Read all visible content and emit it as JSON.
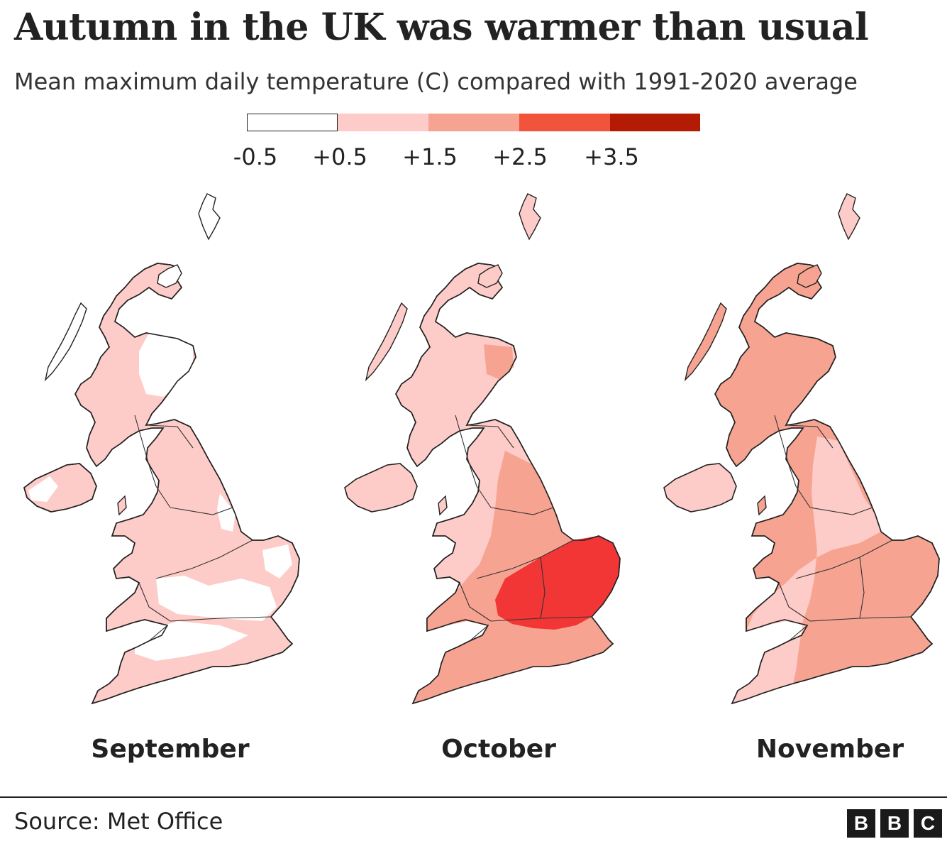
{
  "header": {
    "title": "Autumn in the UK was warmer than usual",
    "subtitle": "Mean maximum daily temperature (C) compared with 1991-2020 average"
  },
  "legend": {
    "ticks": [
      "-0.5",
      "+0.5",
      "+1.5",
      "+2.5",
      "+3.5"
    ],
    "bins": [
      {
        "from": -0.5,
        "to": 0.5,
        "color": "#ffffff"
      },
      {
        "from": 0.5,
        "to": 1.5,
        "color": "#fdccc8"
      },
      {
        "from": 1.5,
        "to": 2.5,
        "color": "#f7a392"
      },
      {
        "from": 2.5,
        "to": 3.5,
        "color": "#f2533b"
      },
      {
        "from": 3.5,
        "to": 4.5,
        "color": "#b31b04"
      }
    ]
  },
  "maps": [
    {
      "month": "September",
      "base_color": "#fdccc8",
      "highlight_color": "#ffffff",
      "outline_color": "#222222"
    },
    {
      "month": "October",
      "base_color": "#fdccc8",
      "mid_color": "#f7a392",
      "highlight_color": "#f23636",
      "outline_color": "#222222"
    },
    {
      "month": "November",
      "base_color": "#f7a392",
      "mid_color": "#fdccc8",
      "outline_color": "#222222"
    }
  ],
  "footer": {
    "source": "Source: Met Office",
    "logo_letters": [
      "B",
      "B",
      "C"
    ]
  }
}
